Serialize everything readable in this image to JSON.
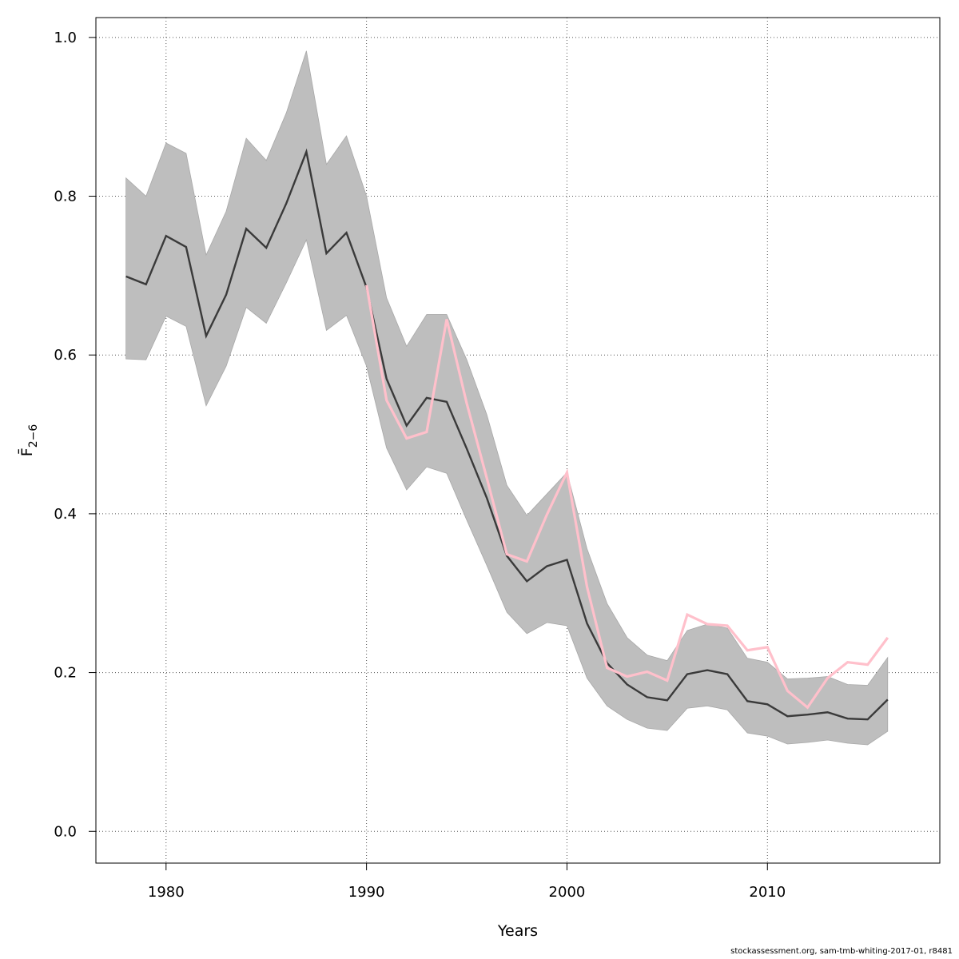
{
  "chart_data": {
    "type": "line",
    "xlabel": "Years",
    "ylabel": "F̄",
    "ylabel_subscript": "2−6",
    "xlim": [
      1976.5,
      2018.6
    ],
    "ylim": [
      -0.04,
      1.025
    ],
    "x_ticks": [
      1980,
      1990,
      2000,
      2010
    ],
    "y_ticks": [
      0.0,
      0.2,
      0.4,
      0.6,
      0.8,
      1.0
    ],
    "y_tick_labels": [
      "0.0",
      "0.2",
      "0.4",
      "0.6",
      "0.8",
      "1.0"
    ],
    "grid": true,
    "x": [
      1978,
      1979,
      1980,
      1981,
      1982,
      1983,
      1984,
      1985,
      1986,
      1987,
      1988,
      1989,
      1990,
      1991,
      1992,
      1993,
      1994,
      1995,
      1996,
      1997,
      1998,
      1999,
      2000,
      2001,
      2002,
      2003,
      2004,
      2005,
      2006,
      2007,
      2008,
      2009,
      2010,
      2011,
      2012,
      2013,
      2014,
      2015,
      2016
    ],
    "series": [
      {
        "color": "#3a3a3a",
        "values": [
          0.699,
          0.689,
          0.75,
          0.736,
          0.624,
          0.676,
          0.759,
          0.735,
          0.791,
          0.856,
          0.728,
          0.754,
          0.685,
          0.57,
          0.511,
          0.546,
          0.541,
          0.482,
          0.42,
          0.347,
          0.315,
          0.334,
          0.342,
          0.262,
          0.212,
          0.185,
          0.169,
          0.165,
          0.198,
          0.203,
          0.198,
          0.164,
          0.16,
          0.145,
          0.147,
          0.15,
          0.142,
          0.141,
          0.166
        ]
      },
      {
        "color": "#ffc0cb",
        "x": [
          1990,
          1991,
          1992,
          1993,
          1994,
          1995,
          1996,
          1997,
          1998,
          1999,
          2000,
          2001,
          2002,
          2003,
          2004,
          2005,
          2006,
          2007,
          2008,
          2009,
          2010,
          2011,
          2012,
          2013,
          2014,
          2015,
          2016
        ],
        "values": [
          0.688,
          0.543,
          0.495,
          0.503,
          0.645,
          0.539,
          0.445,
          0.349,
          0.34,
          0.399,
          0.452,
          0.308,
          0.206,
          0.195,
          0.201,
          0.19,
          0.273,
          0.261,
          0.259,
          0.228,
          0.232,
          0.177,
          0.156,
          0.193,
          0.213,
          0.21,
          0.244
        ]
      }
    ],
    "band": {
      "color": "#bebebe",
      "upper": [
        0.823,
        0.8,
        0.867,
        0.854,
        0.726,
        0.781,
        0.873,
        0.845,
        0.905,
        0.983,
        0.84,
        0.876,
        0.8,
        0.672,
        0.611,
        0.651,
        0.651,
        0.594,
        0.525,
        0.436,
        0.398,
        0.425,
        0.452,
        0.356,
        0.287,
        0.244,
        0.222,
        0.215,
        0.253,
        0.261,
        0.256,
        0.218,
        0.213,
        0.192,
        0.193,
        0.195,
        0.185,
        0.184,
        0.219
      ],
      "lower": [
        0.595,
        0.594,
        0.649,
        0.636,
        0.536,
        0.586,
        0.66,
        0.64,
        0.691,
        0.745,
        0.631,
        0.65,
        0.586,
        0.483,
        0.43,
        0.459,
        0.451,
        0.392,
        0.335,
        0.276,
        0.249,
        0.263,
        0.259,
        0.193,
        0.158,
        0.141,
        0.13,
        0.127,
        0.155,
        0.158,
        0.153,
        0.124,
        0.12,
        0.11,
        0.112,
        0.115,
        0.111,
        0.109,
        0.126
      ]
    }
  },
  "footer_text": "stockassessment.org, sam-tmb-whiting-2017-01, r8481"
}
